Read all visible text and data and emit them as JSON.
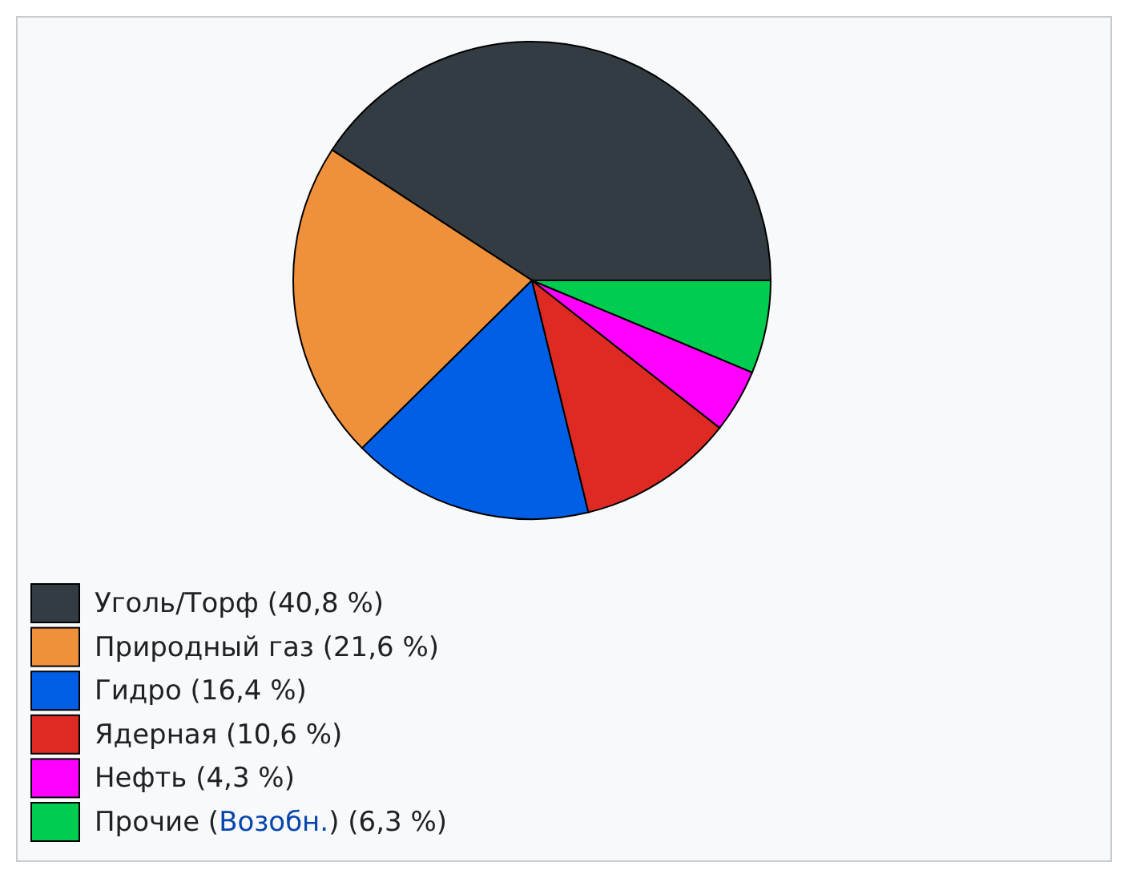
{
  "chart_data": {
    "type": "pie",
    "categories": [
      "Уголь/Торф (40,8 %)",
      "Природный газ (21,6 %)",
      "Гидро (16,4 %)",
      "Ядерная (10,6 %)",
      "Нефть (4,3 %)",
      "Прочие (Возобн.) (6,3 %)"
    ],
    "values": [
      40.8,
      21.6,
      16.4,
      10.6,
      4.3,
      6.3
    ],
    "colors": [
      "#333c42",
      "#ef903b",
      "#005fe5",
      "#df2a24",
      "#ff00ff",
      "#00cc4f"
    ],
    "legend": "bottom left"
  }
}
